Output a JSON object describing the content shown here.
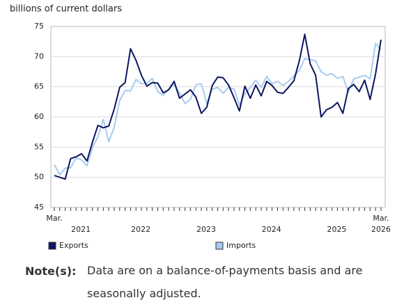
{
  "chart_data": {
    "type": "line",
    "y_axis_label": "billions of current dollars",
    "categories": [
      "Mar.",
      null,
      null,
      null,
      null,
      null,
      null,
      null,
      null,
      null,
      null,
      null,
      null,
      null,
      null,
      null,
      null,
      null,
      null,
      null,
      null,
      null,
      null,
      null,
      null,
      null,
      null,
      null,
      null,
      null,
      null,
      null,
      null,
      null,
      null,
      null,
      null,
      null,
      null,
      null,
      null,
      null,
      null,
      null,
      null,
      null,
      null,
      null,
      null,
      null,
      null,
      null,
      null,
      null,
      null,
      null,
      null,
      null,
      null,
      null,
      "Mar."
    ],
    "year_groups": [
      {
        "label": "2021",
        "count": 10
      },
      {
        "label": "2022",
        "count": 12
      },
      {
        "label": "2023",
        "count": 12
      },
      {
        "label": "2024",
        "count": 12
      },
      {
        "label": "2025",
        "count": 12
      },
      {
        "label": "2026",
        "count": 3
      }
    ],
    "series": [
      {
        "name": "Exports",
        "color": "#0b1560",
        "values": [
          50.3,
          50.0,
          49.7,
          53.1,
          53.4,
          53.9,
          52.7,
          55.8,
          58.6,
          58.2,
          58.5,
          61.3,
          64.9,
          65.7,
          71.3,
          69.4,
          66.9,
          65.1,
          65.7,
          65.6,
          64.0,
          64.5,
          65.9,
          63.1,
          63.8,
          64.5,
          63.3,
          60.6,
          61.6,
          65.2,
          66.6,
          66.5,
          65.3,
          63.2,
          61.0,
          65.1,
          63.1,
          65.3,
          63.5,
          65.9,
          65.2,
          64.1,
          63.9,
          64.9,
          66.0,
          69.3,
          73.7,
          68.8,
          66.9,
          60.0,
          61.2,
          61.6,
          62.4,
          60.6,
          64.7,
          65.4,
          64.2,
          66.1,
          62.9,
          67.1,
          72.8
        ]
      },
      {
        "name": "Imports",
        "color": "#a6cbf0",
        "values": [
          52.1,
          50.4,
          51.5,
          51.6,
          53.2,
          52.9,
          51.9,
          54.9,
          56.7,
          59.6,
          55.9,
          58.3,
          62.7,
          64.4,
          64.3,
          66.2,
          65.5,
          65.6,
          66.4,
          64.2,
          63.6,
          64.6,
          65.4,
          64.0,
          62.2,
          62.9,
          65.3,
          65.5,
          62.2,
          64.6,
          64.9,
          63.9,
          64.9,
          64.6,
          62.0,
          63.8,
          64.9,
          66.1,
          64.9,
          66.7,
          65.5,
          65.9,
          65.2,
          65.9,
          66.8,
          67.7,
          69.7,
          69.5,
          69.3,
          67.5,
          66.9,
          67.2,
          66.4,
          66.7,
          64.1,
          66.3,
          66.6,
          66.9,
          66.3,
          72.2,
          71.2
        ]
      }
    ],
    "ylim": [
      45,
      75
    ],
    "yticks": [
      45,
      50,
      55,
      60,
      65,
      70,
      75
    ],
    "grid": true,
    "legend_position": "bottom"
  },
  "notes": {
    "label": "Note(s):",
    "text": "Data are on a balance-of-payments basis and are seasonally adjusted."
  }
}
